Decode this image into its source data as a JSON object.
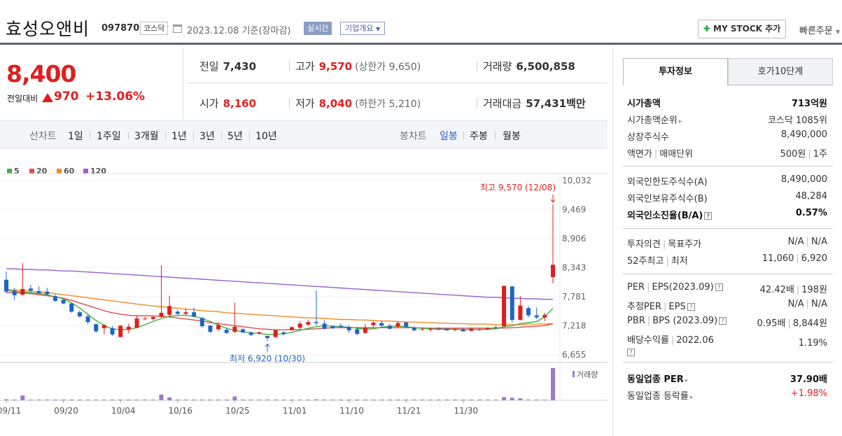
{
  "header": {
    "company_name": "효성오앤비",
    "code": "097870",
    "market": "코스닥",
    "date_text": "2023.12.08  기준(장마감)",
    "realtime_label": "실시간",
    "company_info_label": "기업개요",
    "mystock_label": "MY STOCK 추가",
    "quick_order_label": "빠른주문"
  },
  "price": {
    "current": "8,400",
    "change_label": "전일대비",
    "change_value": "970",
    "change_pct": "+13.06%",
    "prev_close_label": "전일",
    "prev_close": "7,430",
    "high_label": "고가",
    "high": "9,570",
    "upper_limit": "(상한가 9,650)",
    "volume_label": "거래량",
    "volume": "6,500,858",
    "open_label": "시가",
    "open": "8,160",
    "low_label": "저가",
    "low": "8,040",
    "lower_limit": "(하한가 5,210)",
    "amount_label": "거래대금",
    "amount": "57,431",
    "amount_unit": "백만"
  },
  "periods": {
    "line_label": "선차트",
    "line_items": [
      "1일",
      "1주일",
      "3개월",
      "1년",
      "3년",
      "5년",
      "10년"
    ],
    "candle_label": "봉차트",
    "candle_items": [
      "일봉",
      "주봉",
      "월봉"
    ],
    "candle_selected": "일봉"
  },
  "colors": {
    "up": "#e01e1e",
    "down": "#1e64c8",
    "ma5": "#3fb23f",
    "ma20": "#e04b4b",
    "ma60": "#f08c26",
    "ma120": "#9a5fd0"
  },
  "chart_data": {
    "type": "candlestick",
    "legend": [
      "5",
      "20",
      "60",
      "120"
    ],
    "y_ticks": [
      10032,
      9469,
      8906,
      8343,
      7781,
      7218,
      6655
    ],
    "x_ticks": [
      "09/11",
      "09/20",
      "10/04",
      "10/16",
      "10/25",
      "11/01",
      "11/10",
      "11/21",
      "11/30"
    ],
    "x_tick_index": [
      0,
      7,
      14,
      21,
      28,
      35,
      42,
      49,
      56
    ],
    "high_annotation": "최고 9,570 (12/08)",
    "low_annotation": "최저 6,920 (10/30)",
    "volume_label": "거래량",
    "candles": [
      {
        "o": 8110,
        "h": 8270,
        "l": 7850,
        "c": 7880
      },
      {
        "o": 7900,
        "h": 7950,
        "l": 7720,
        "c": 7810
      },
      {
        "o": 7820,
        "h": 8430,
        "l": 7800,
        "c": 7930
      },
      {
        "o": 7940,
        "h": 8010,
        "l": 7860,
        "c": 7900
      },
      {
        "o": 7890,
        "h": 7980,
        "l": 7840,
        "c": 7850
      },
      {
        "o": 7880,
        "h": 7950,
        "l": 7810,
        "c": 7830
      },
      {
        "o": 7790,
        "h": 7830,
        "l": 7680,
        "c": 7700
      },
      {
        "o": 7720,
        "h": 7760,
        "l": 7640,
        "c": 7650
      },
      {
        "o": 7650,
        "h": 7660,
        "l": 7470,
        "c": 7490
      },
      {
        "o": 7480,
        "h": 7520,
        "l": 7380,
        "c": 7400
      },
      {
        "o": 7400,
        "h": 7430,
        "l": 7250,
        "c": 7290
      },
      {
        "o": 7250,
        "h": 7260,
        "l": 7080,
        "c": 7110
      },
      {
        "o": 7170,
        "h": 7260,
        "l": 7050,
        "c": 7230
      },
      {
        "o": 7170,
        "h": 7210,
        "l": 7020,
        "c": 7050
      },
      {
        "o": 7000,
        "h": 7230,
        "l": 6990,
        "c": 7220
      },
      {
        "o": 7140,
        "h": 7260,
        "l": 7070,
        "c": 7200
      },
      {
        "o": 7180,
        "h": 7420,
        "l": 7170,
        "c": 7360
      },
      {
        "o": 7350,
        "h": 7390,
        "l": 7330,
        "c": 7360
      },
      {
        "o": 7350,
        "h": 7400,
        "l": 7320,
        "c": 7390
      },
      {
        "o": 7390,
        "h": 8390,
        "l": 7370,
        "c": 7470
      },
      {
        "o": 7430,
        "h": 7800,
        "l": 7380,
        "c": 7600
      },
      {
        "o": 7490,
        "h": 7530,
        "l": 7420,
        "c": 7450
      },
      {
        "o": 7450,
        "h": 7560,
        "l": 7420,
        "c": 7480
      },
      {
        "o": 7480,
        "h": 7570,
        "l": 7380,
        "c": 7400
      },
      {
        "o": 7370,
        "h": 7380,
        "l": 7180,
        "c": 7210
      },
      {
        "o": 7220,
        "h": 7240,
        "l": 7080,
        "c": 7100
      },
      {
        "o": 7150,
        "h": 7280,
        "l": 7120,
        "c": 7230
      },
      {
        "o": 7140,
        "h": 7180,
        "l": 7060,
        "c": 7080
      },
      {
        "o": 7100,
        "h": 7670,
        "l": 7080,
        "c": 7200
      },
      {
        "o": 7150,
        "h": 7170,
        "l": 7070,
        "c": 7090
      },
      {
        "o": 7090,
        "h": 7110,
        "l": 7020,
        "c": 7040
      },
      {
        "o": 7070,
        "h": 7110,
        "l": 7050,
        "c": 7090
      },
      {
        "o": 7020,
        "h": 7030,
        "l": 6920,
        "c": 6980
      },
      {
        "o": 7000,
        "h": 7150,
        "l": 6990,
        "c": 7130
      },
      {
        "o": 7090,
        "h": 7110,
        "l": 7030,
        "c": 7060
      },
      {
        "o": 7140,
        "h": 7210,
        "l": 7120,
        "c": 7190
      },
      {
        "o": 7180,
        "h": 7310,
        "l": 7150,
        "c": 7260
      },
      {
        "o": 7240,
        "h": 7330,
        "l": 7220,
        "c": 7290
      },
      {
        "o": 7290,
        "h": 7900,
        "l": 7220,
        "c": 7270
      },
      {
        "o": 7260,
        "h": 7330,
        "l": 7140,
        "c": 7160
      },
      {
        "o": 7210,
        "h": 7220,
        "l": 7150,
        "c": 7170
      },
      {
        "o": 7220,
        "h": 7260,
        "l": 7180,
        "c": 7200
      },
      {
        "o": 7190,
        "h": 7230,
        "l": 7080,
        "c": 7130
      },
      {
        "o": 7150,
        "h": 7200,
        "l": 7030,
        "c": 7060
      },
      {
        "o": 7080,
        "h": 7250,
        "l": 7060,
        "c": 7180
      },
      {
        "o": 7230,
        "h": 7300,
        "l": 7190,
        "c": 7280
      },
      {
        "o": 7270,
        "h": 7320,
        "l": 7200,
        "c": 7220
      },
      {
        "o": 7220,
        "h": 7250,
        "l": 7140,
        "c": 7160
      },
      {
        "o": 7200,
        "h": 7310,
        "l": 7180,
        "c": 7270
      },
      {
        "o": 7280,
        "h": 7300,
        "l": 7180,
        "c": 7200
      },
      {
        "o": 7180,
        "h": 7210,
        "l": 7110,
        "c": 7130
      },
      {
        "o": 7150,
        "h": 7190,
        "l": 7130,
        "c": 7150
      },
      {
        "o": 7140,
        "h": 7180,
        "l": 7110,
        "c": 7160
      },
      {
        "o": 7160,
        "h": 7190,
        "l": 7130,
        "c": 7150
      },
      {
        "o": 7160,
        "h": 7170,
        "l": 7120,
        "c": 7130
      },
      {
        "o": 7140,
        "h": 7180,
        "l": 7110,
        "c": 7150
      },
      {
        "o": 7150,
        "h": 7180,
        "l": 7100,
        "c": 7110
      },
      {
        "o": 7120,
        "h": 7170,
        "l": 7110,
        "c": 7160
      },
      {
        "o": 7140,
        "h": 7170,
        "l": 7120,
        "c": 7150
      },
      {
        "o": 7150,
        "h": 7190,
        "l": 7130,
        "c": 7170
      },
      {
        "o": 7190,
        "h": 7220,
        "l": 7150,
        "c": 7180
      },
      {
        "o": 7210,
        "h": 8000,
        "l": 7190,
        "c": 7990
      },
      {
        "o": 7980,
        "h": 7990,
        "l": 7280,
        "c": 7330
      },
      {
        "o": 7330,
        "h": 7790,
        "l": 7320,
        "c": 7610
      },
      {
        "o": 7560,
        "h": 7600,
        "l": 7380,
        "c": 7420
      },
      {
        "o": 7420,
        "h": 7570,
        "l": 7350,
        "c": 7380
      },
      {
        "o": 7380,
        "h": 7470,
        "l": 7310,
        "c": 7430
      },
      {
        "o": 8160,
        "h": 9570,
        "l": 8040,
        "c": 8400
      }
    ],
    "volume": [
      3,
      1,
      15,
      2,
      2,
      1,
      1,
      1,
      1,
      1,
      1,
      1,
      1,
      1,
      1,
      1,
      1,
      1,
      1,
      18,
      9,
      2,
      2,
      1,
      1,
      1,
      1,
      1,
      12,
      1,
      1,
      1,
      2,
      1,
      1,
      1,
      1,
      2,
      3,
      1,
      1,
      1,
      1,
      1,
      1,
      1,
      1,
      1,
      1,
      1,
      1,
      1,
      1,
      1,
      1,
      1,
      1,
      1,
      1,
      1,
      1,
      10,
      8,
      6,
      2,
      1,
      1,
      100
    ],
    "ma5": [
      7910,
      7880,
      7870,
      7860,
      7840,
      7820,
      7780,
      7740,
      7660,
      7560,
      7440,
      7320,
      7220,
      7160,
      7140,
      7150,
      7180,
      7240,
      7300,
      7360,
      7400,
      7420,
      7420,
      7400,
      7360,
      7300,
      7230,
      7170,
      7130,
      7100,
      7080,
      7070,
      7050,
      7050,
      7060,
      7090,
      7130,
      7170,
      7200,
      7220,
      7210,
      7200,
      7190,
      7170,
      7150,
      7160,
      7190,
      7210,
      7210,
      7200,
      7180,
      7170,
      7160,
      7150,
      7150,
      7150,
      7145,
      7140,
      7140,
      7150,
      7160,
      7200,
      7220,
      7260,
      7280,
      7300,
      7390,
      7560
    ],
    "ma20": [
      7860,
      7860,
      7850,
      7840,
      7820,
      7800,
      7780,
      7750,
      7710,
      7660,
      7610,
      7560,
      7510,
      7470,
      7440,
      7420,
      7410,
      7410,
      7410,
      7400,
      7390,
      7370,
      7350,
      7330,
      7310,
      7280,
      7260,
      7240,
      7220,
      7200,
      7180,
      7160,
      7150,
      7140,
      7140,
      7140,
      7140,
      7150,
      7160,
      7170,
      7180,
      7180,
      7180,
      7180,
      7180,
      7180,
      7180,
      7180,
      7180,
      7180,
      7180,
      7175,
      7170,
      7170,
      7170,
      7170,
      7170,
      7170,
      7170,
      7170,
      7170,
      7175,
      7180,
      7190,
      7200,
      7210,
      7220,
      7260
    ],
    "ma60": [
      7920,
      7910,
      7900,
      7890,
      7870,
      7860,
      7840,
      7820,
      7800,
      7780,
      7760,
      7740,
      7720,
      7700,
      7680,
      7660,
      7640,
      7620,
      7600,
      7590,
      7570,
      7560,
      7540,
      7530,
      7510,
      7500,
      7490,
      7470,
      7460,
      7450,
      7440,
      7430,
      7420,
      7410,
      7400,
      7390,
      7380,
      7370,
      7370,
      7360,
      7350,
      7340,
      7340,
      7330,
      7330,
      7320,
      7310,
      7310,
      7300,
      7290,
      7290,
      7280,
      7280,
      7270,
      7270,
      7260,
      7260,
      7250,
      7250,
      7250,
      7240,
      7240,
      7240,
      7240,
      7250,
      7250,
      7250,
      7260
    ],
    "ma120": [
      8320,
      8320,
      8310,
      8310,
      8300,
      8300,
      8290,
      8280,
      8280,
      8270,
      8260,
      8250,
      8240,
      8230,
      8220,
      8210,
      8200,
      8190,
      8180,
      8170,
      8160,
      8150,
      8140,
      8130,
      8120,
      8110,
      8100,
      8090,
      8080,
      8070,
      8060,
      8050,
      8040,
      8030,
      8020,
      8010,
      8000,
      7990,
      7980,
      7970,
      7960,
      7950,
      7940,
      7930,
      7920,
      7910,
      7900,
      7890,
      7880,
      7870,
      7860,
      7850,
      7840,
      7830,
      7820,
      7810,
      7800,
      7790,
      7780,
      7770,
      7770,
      7760,
      7750,
      7750,
      7740,
      7740,
      7730,
      7730
    ]
  },
  "invest": {
    "tab_active": "투자정보",
    "tab_other": "호가10단계",
    "rows1": [
      {
        "k": "시가총액",
        "v": "713억원"
      },
      {
        "k": "시가총액순위",
        "v": "코스닥 1085위"
      },
      {
        "k": "상장주식수",
        "v": "8,490,000"
      },
      {
        "k": "액면가",
        "k2": "매매단위",
        "v": "500원",
        "v2": "1주"
      }
    ],
    "rows2": [
      {
        "k": "외국인한도주식수(A)",
        "v": "8,490,000"
      },
      {
        "k": "외국인보유주식수(B)",
        "v": "48,284"
      },
      {
        "k": "외국인소진율(B/A)",
        "v": "0.57%"
      }
    ],
    "rows3": [
      {
        "k": "투자의견",
        "k2": "목표주가",
        "v": "N/A",
        "v2": "N/A"
      },
      {
        "k": "52주최고",
        "k2": "최저",
        "v": "11,060",
        "v2": "6,920"
      }
    ],
    "rows4": [
      {
        "k": "PER",
        "k2": "EPS(2023.09)",
        "v": "42.42배",
        "v2": "198원"
      },
      {
        "k": "추정PER",
        "k2": "EPS",
        "v": "N/A",
        "v2": "N/A"
      },
      {
        "k": "PBR",
        "k2": "BPS (2023.09)",
        "v": "0.95배",
        "v2": "8,844원"
      },
      {
        "k": "배당수익률",
        "k2": "2022.06",
        "v": "1.19%"
      }
    ],
    "rows5": [
      {
        "k": "동일업종 PER",
        "v": "37.90배"
      },
      {
        "k": "동일업종 등락률",
        "v": "+1.98%"
      }
    ]
  }
}
